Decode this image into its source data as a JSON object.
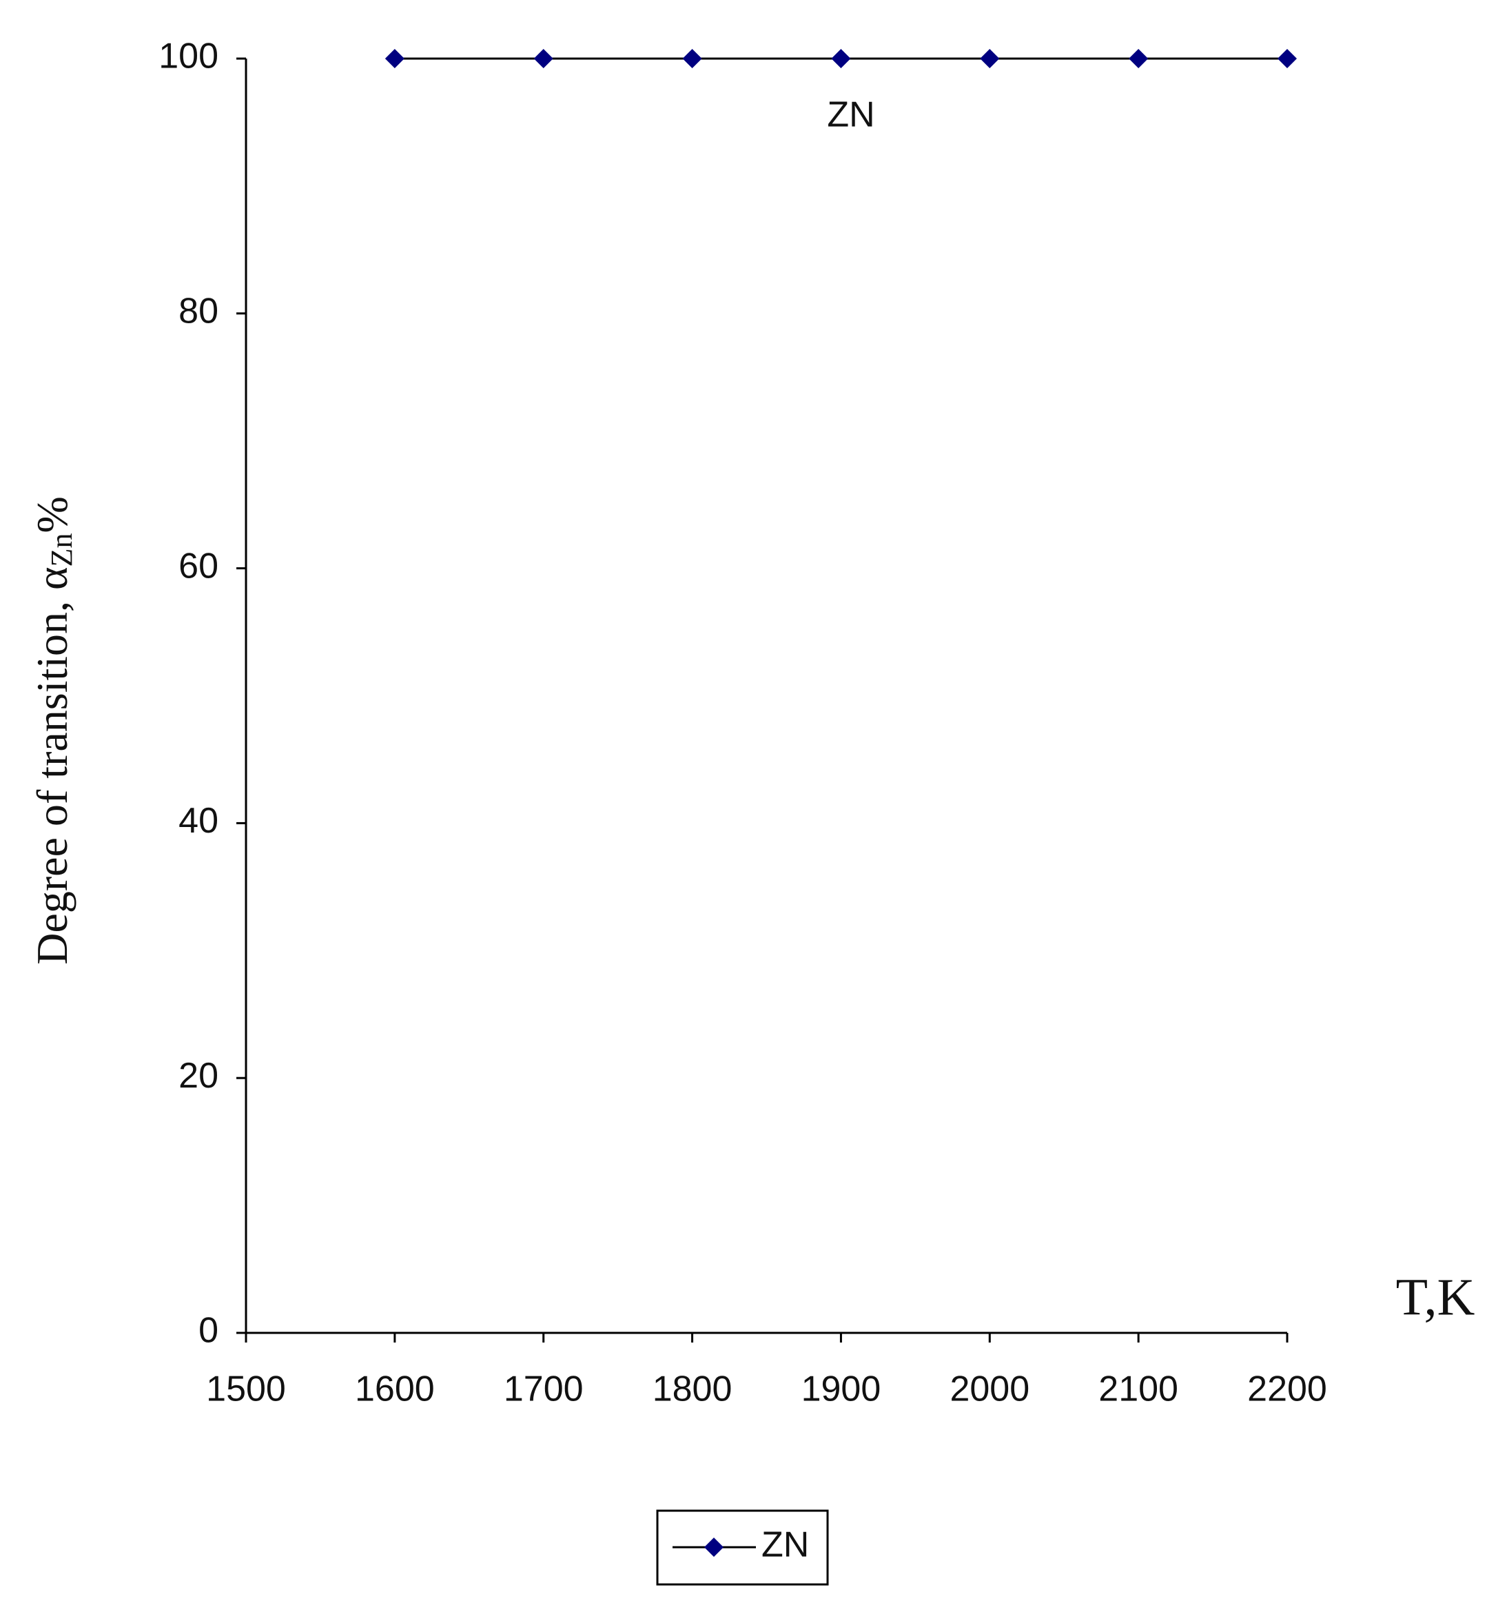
{
  "chart_data": {
    "type": "line",
    "x_label": "T,K",
    "y_label": {
      "text": "Degree of transition, α",
      "subscript": "Zn",
      "suffix": "%"
    },
    "annotation": "ZN",
    "x": [
      1600,
      1700,
      1800,
      1900,
      2000,
      2100,
      2200
    ],
    "series": [
      {
        "name": "ZN",
        "color": "#000080",
        "values": [
          100,
          100,
          100,
          100,
          100,
          100,
          100
        ]
      }
    ],
    "xlim": [
      1500,
      2200
    ],
    "xticks": [
      1500,
      1600,
      1700,
      1800,
      1900,
      2000,
      2100,
      2200
    ],
    "ylim": [
      0,
      100
    ],
    "yticks": [
      0,
      20,
      40,
      60,
      80,
      100
    ],
    "grid": false,
    "legend": "bottom"
  }
}
